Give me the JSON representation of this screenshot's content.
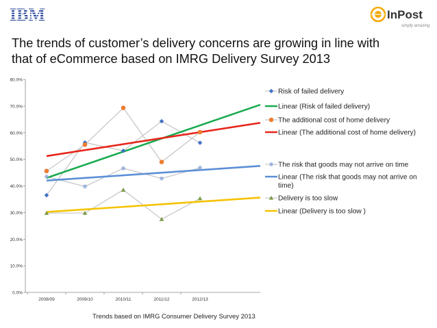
{
  "header": {
    "left_logo_text": "IBM",
    "right_logo_text": "InPost",
    "right_logo_tagline": "simply amazing"
  },
  "title_line1": "The trends of customer’s delivery concerns are growing in line with",
  "title_line2": "that of eCommerce based on IMRG Delivery Survey 2013",
  "caption": "Trends based on IMRG Consumer Delivery Survey 2013",
  "chart_data": {
    "type": "line",
    "categories": [
      "2008/09",
      "2009/10",
      "2010/11",
      "2011/12",
      "2012/13"
    ],
    "ylim": [
      0,
      80
    ],
    "yticks": [
      "0.0%",
      "10.0%",
      "20.0%",
      "30.0%",
      "40.0%",
      "50.0%",
      "60.0%",
      "70.0%",
      "80.0%"
    ],
    "grid": false,
    "series": [
      {
        "name": "Risk of failed delivery",
        "marker": "diamond",
        "color": "#4472c4",
        "values": [
          36.5,
          56.3,
          53.2,
          64.3,
          56.2
        ]
      },
      {
        "name": "The additional cost of home delivery",
        "marker": "circle",
        "color": "#ed7d31",
        "values": [
          45.6,
          55.5,
          69.3,
          49.0,
          60.2
        ]
      },
      {
        "name": "The risk that goods may not arrive on time",
        "marker": "star",
        "color": "#8fa9d9",
        "values": [
          43.5,
          39.8,
          46.6,
          42.8,
          46.8
        ]
      },
      {
        "name": "Delivery is too slow",
        "marker": "triangle",
        "color": "#7f9a48",
        "values": [
          29.8,
          29.8,
          38.5,
          27.5,
          35.3
        ]
      }
    ],
    "trendlines": [
      {
        "name": "Linear (Risk of failed delivery)",
        "color": "#1aaa4f",
        "start": 43.0,
        "end": 70.5
      },
      {
        "name": "Linear (The additional cost of home delivery)",
        "color": "#e8241a",
        "start": 51.2,
        "end": 63.7
      },
      {
        "name": "Linear (The risk that goods may not arrive on time)",
        "label_line1": "Linear (The risk that goods may not arrive on",
        "label_line2": "time)",
        "color": "#5b8fd6",
        "start": 42.0,
        "end": 47.5
      },
      {
        "name": "Linear (Delivery is too slow )",
        "color": "#f5c200",
        "start": 30.2,
        "end": 35.6
      }
    ]
  }
}
